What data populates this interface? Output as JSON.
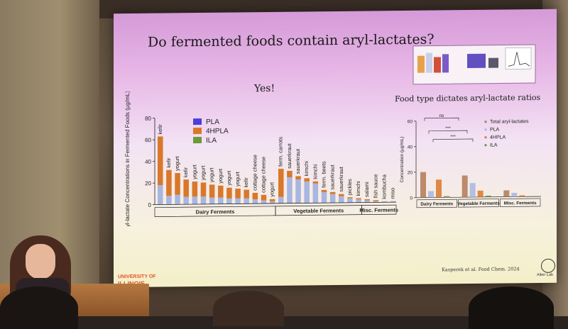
{
  "slide": {
    "title": "Do fermented foods contain aryl-lactates?",
    "answer": "Yes!",
    "right_title": "Food type dictates aryl-lactate ratios",
    "citation": "Kasperek et al. Food Chem. 2024",
    "university_line1": "UNIVERSITY OF",
    "university_line2": "ILLINOIS",
    "lab_name": "Allen Lab"
  },
  "colors": {
    "PLA": "#4a3fd8",
    "4HPLA": "#d9782a",
    "ILA": "#6a9a3a",
    "pla_bar": "#a8b6e0"
  },
  "chart_data": [
    {
      "type": "bar",
      "ylabel": "Aryl-lactate Concentrations in Fermented Foods (µg/mL)",
      "ylim": [
        0,
        80
      ],
      "yticks": [
        0,
        20,
        40,
        60,
        80
      ],
      "legend": [
        "PLA",
        "4HPLA",
        "ILA"
      ],
      "legend_position": "top-left",
      "categories": [
        "kefir",
        "kefir",
        "yogurt",
        "kefir",
        "yogurt",
        "yogurt",
        "yogurt",
        "yogurt",
        "yogurt",
        "yogurt",
        "kefir",
        "cottage cheese",
        "cottage cheese",
        "yogurt",
        "ferm. carrots",
        "sauerkraut",
        "sauerkraut",
        "kimchi",
        "kimchi",
        "ferm. beets",
        "sauerkraut",
        "sauerkraut",
        "pickles",
        "kimchi",
        "salami",
        "fish sauce",
        "kombucha",
        "miso"
      ],
      "series": [
        {
          "name": "PLA",
          "values": [
            18,
            8,
            9,
            7,
            7,
            7,
            6,
            6,
            5,
            5,
            5,
            4,
            3,
            2,
            6,
            24,
            22,
            20,
            18,
            10,
            8,
            6,
            4,
            3,
            2,
            1,
            1,
            1
          ]
        },
        {
          "name": "4HPLA",
          "values": [
            45,
            24,
            20,
            16,
            14,
            13,
            12,
            11,
            10,
            9,
            8,
            6,
            5,
            2,
            26,
            6,
            3,
            3,
            2,
            2,
            2,
            2,
            1,
            1,
            1,
            1,
            0,
            0
          ]
        },
        {
          "name": "ILA",
          "values": [
            0,
            0,
            0,
            0,
            0,
            0,
            0,
            0,
            0,
            0,
            0,
            0,
            0,
            0,
            0,
            0,
            0,
            0,
            0,
            0,
            0,
            0,
            0,
            0,
            0,
            0,
            0,
            0
          ]
        }
      ],
      "groups": [
        {
          "label": "Dairy Ferments",
          "from": 0,
          "to": 13
        },
        {
          "label": "Vegetable Ferments",
          "from": 14,
          "to": 23
        },
        {
          "label": "Misc. Ferments",
          "from": 24,
          "to": 27
        }
      ]
    },
    {
      "type": "bar",
      "ylabel": "Concentration (µg/mL)",
      "ylim": [
        0,
        60
      ],
      "yticks": [
        0,
        20,
        40,
        60
      ],
      "legend": [
        "Total aryl-lactates",
        "PLA",
        "4HPLA",
        "ILA"
      ],
      "legend_position": "top-right",
      "significance": [
        "ns",
        "***",
        "***"
      ],
      "groups": [
        {
          "label": "Dairy Ferments",
          "values": [
            20,
            5,
            14,
            1
          ]
        },
        {
          "label": "Vegetable Ferments",
          "values": [
            17,
            11,
            5,
            1
          ]
        },
        {
          "label": "Misc. Ferments",
          "values": [
            5,
            3,
            1,
            0
          ]
        }
      ]
    }
  ]
}
